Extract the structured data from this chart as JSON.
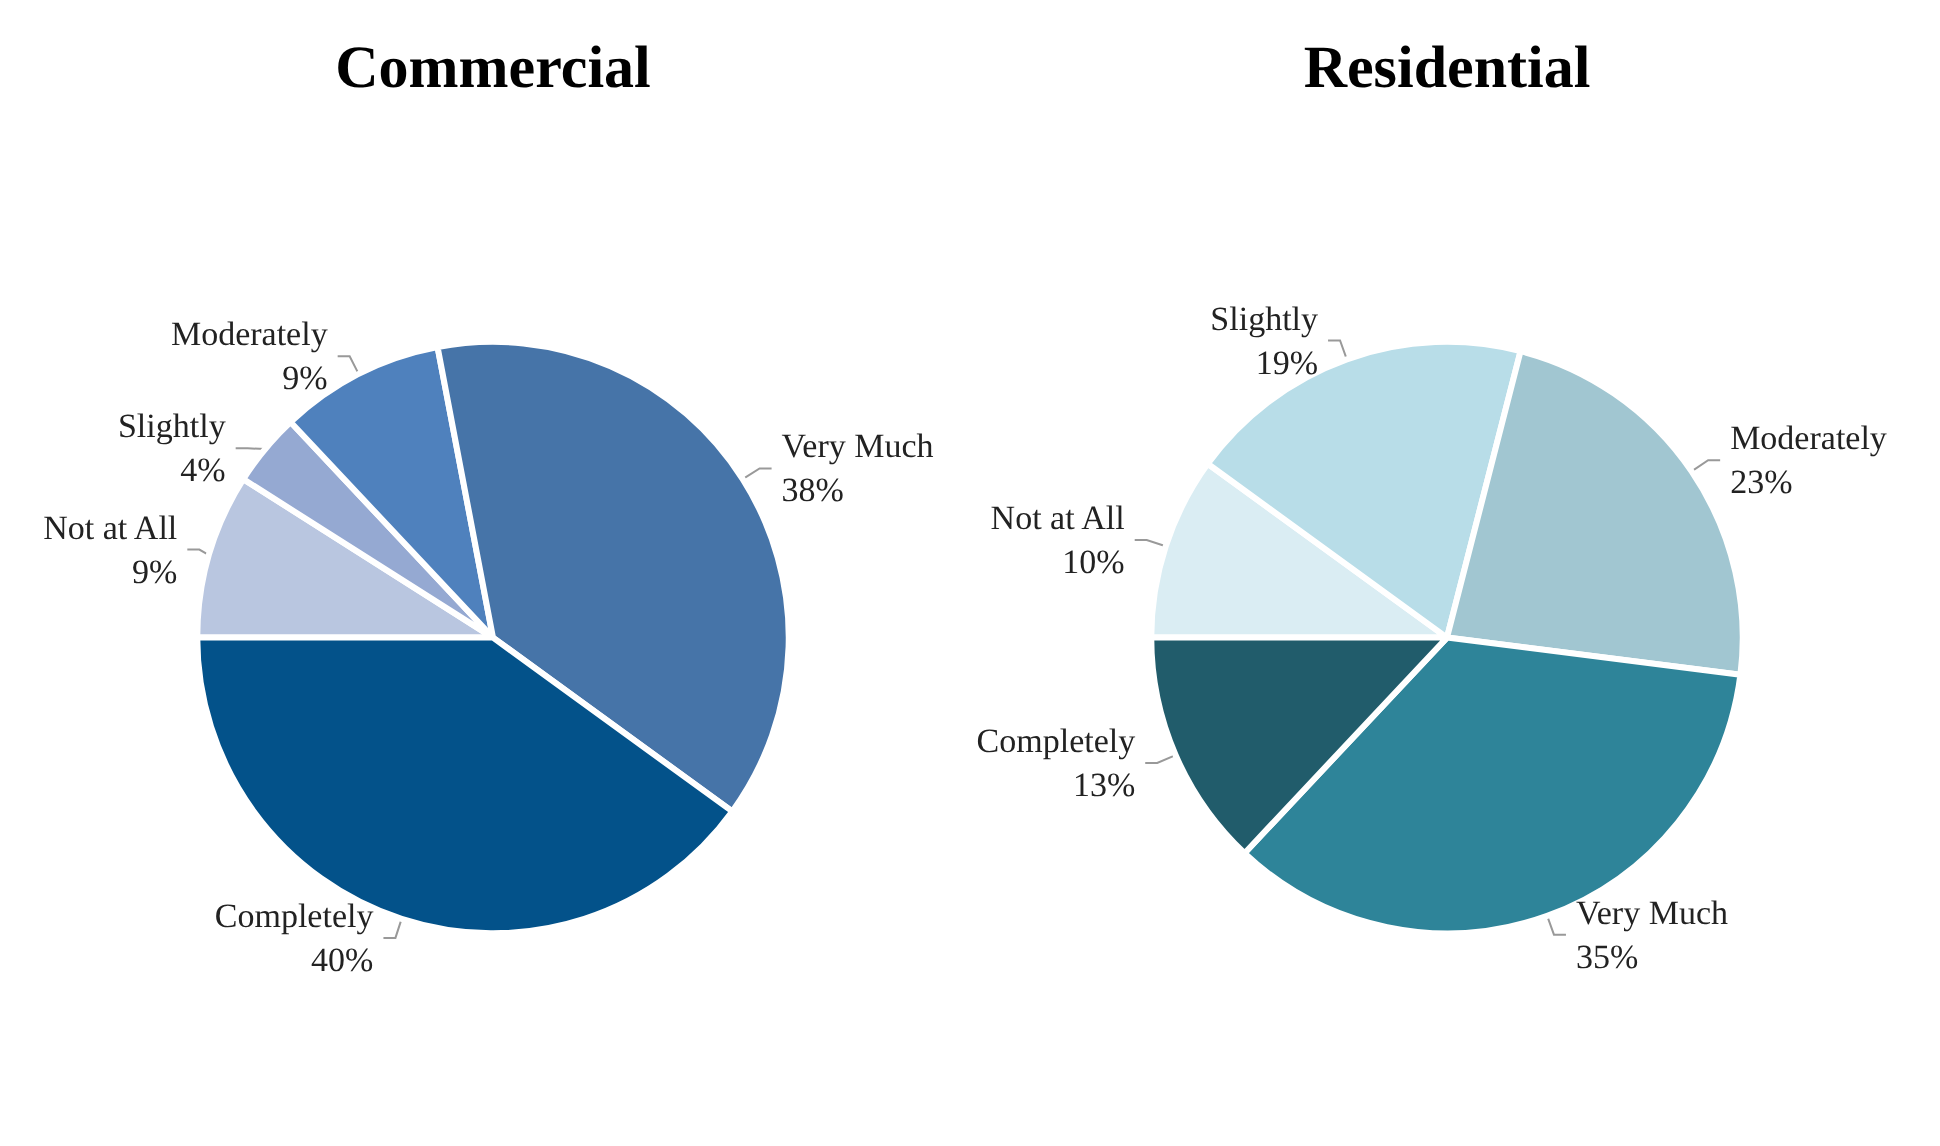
{
  "chart_data": [
    {
      "type": "pie",
      "title": "Commercial",
      "categories": [
        "Not at All",
        "Slightly",
        "Moderately",
        "Very Much",
        "Completely"
      ],
      "values": [
        9,
        4,
        9,
        38,
        40
      ],
      "value_labels": [
        "9%",
        "4%",
        "9%",
        "38%",
        "40%"
      ],
      "colors": [
        "#b9c6e0",
        "#95a9d2",
        "#4f81bd",
        "#4674a8",
        "#03528a"
      ],
      "legend": false
    },
    {
      "type": "pie",
      "title": "Residential",
      "categories": [
        "Not at All",
        "Slightly",
        "Moderately",
        "Very Much",
        "Completely"
      ],
      "values": [
        10,
        19,
        23,
        35,
        13
      ],
      "value_labels": [
        "10%",
        "19%",
        "23%",
        "35%",
        "13%"
      ],
      "colors": [
        "#daedf3",
        "#b8dde8",
        "#a1c6d1",
        "#2e8499",
        "#215c6b"
      ],
      "legend": false
    }
  ]
}
